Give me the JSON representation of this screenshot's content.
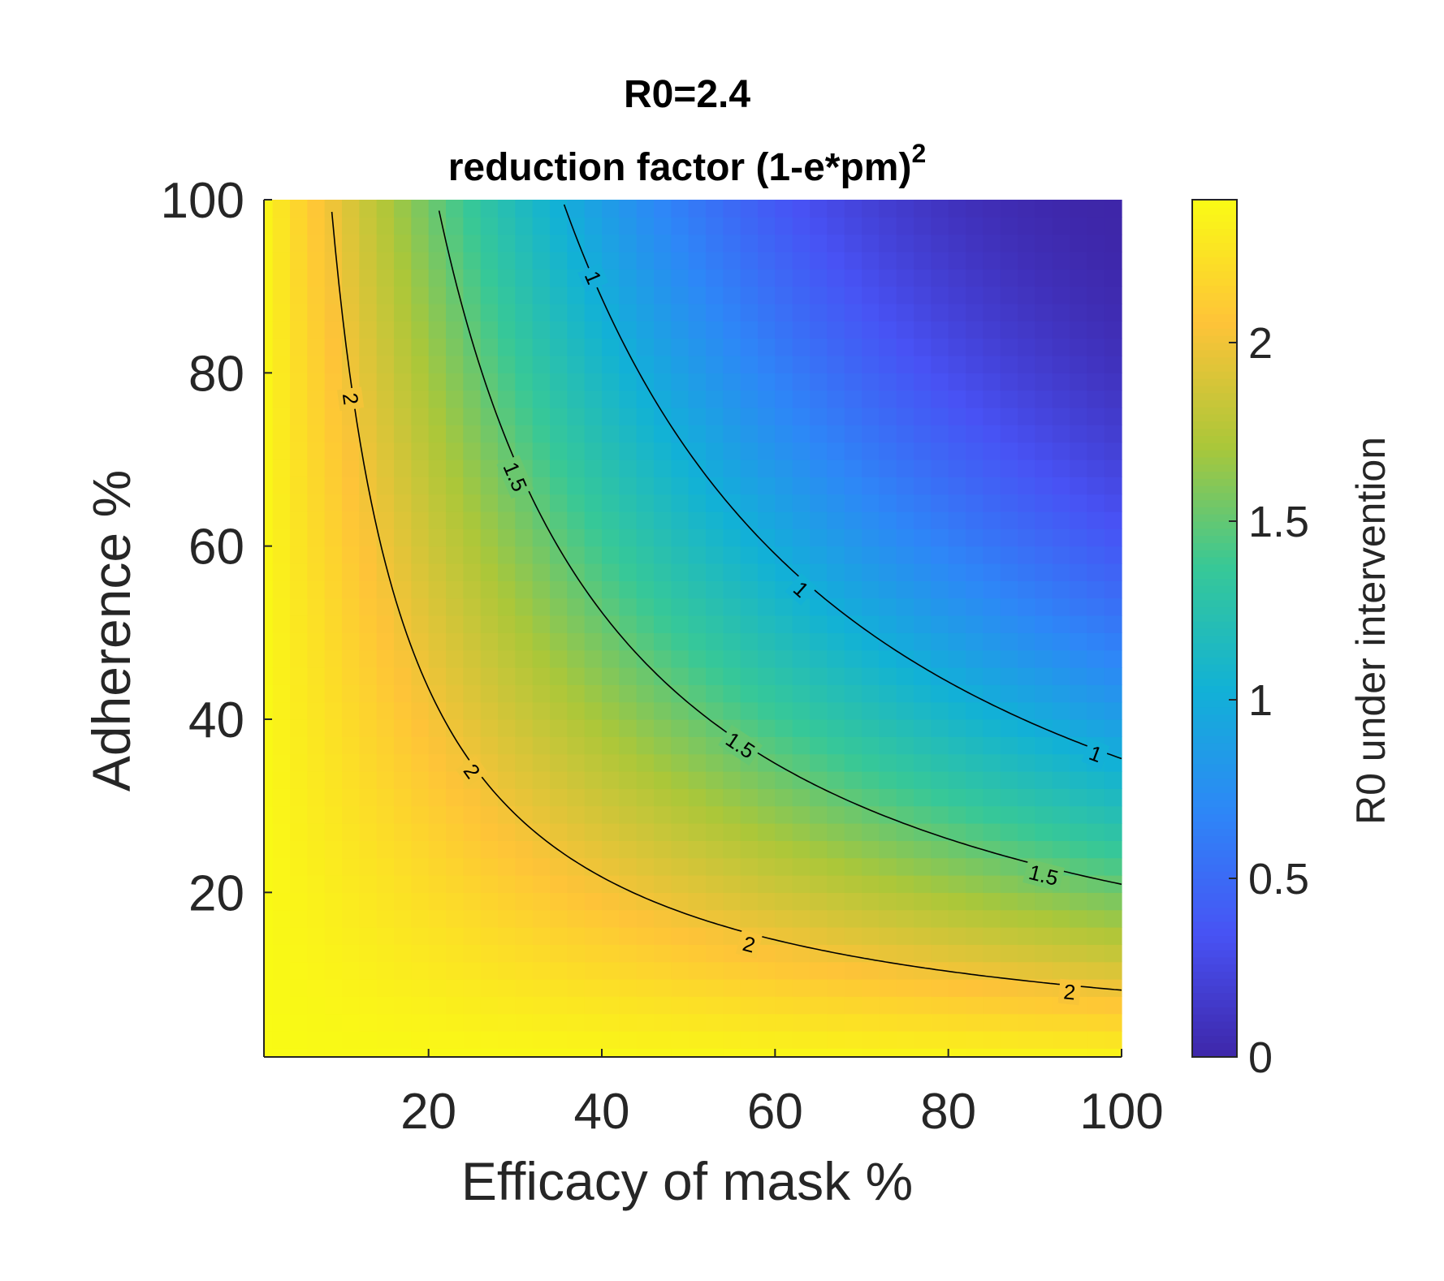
{
  "chart_data": {
    "type": "heatmap",
    "title": "R0=2.4",
    "subtitle_main": "reduction factor (1-e*pm)",
    "subtitle_exponent": "2",
    "xlabel": "Efficacy of mask %",
    "ylabel": "Adherence %",
    "colorbar_label": "R0 under intervention",
    "xlim": [
      1,
      100
    ],
    "ylim": [
      1,
      100
    ],
    "x_ticks": [
      20,
      40,
      60,
      80,
      100
    ],
    "y_ticks": [
      20,
      40,
      60,
      80,
      100
    ],
    "colorbar_range": [
      0,
      2.4
    ],
    "colorbar_ticks": [
      0,
      0.5,
      1,
      1.5,
      2
    ],
    "colormap": "parula",
    "grid_step": 2,
    "R0": 2.4,
    "formula": "R0 * (1 - x/100 * y/100)^2",
    "contour_levels": [
      1,
      1.5,
      2
    ],
    "contour_labels": [
      {
        "level": "2",
        "x": 11,
        "y": 77
      },
      {
        "level": "2",
        "x": 25,
        "y": 34
      },
      {
        "level": "2",
        "x": 57,
        "y": 14
      },
      {
        "level": "2",
        "x": 94,
        "y": 8.5
      },
      {
        "level": "1.5",
        "x": 30,
        "y": 68
      },
      {
        "level": "1.5",
        "x": 56,
        "y": 37
      },
      {
        "level": "1.5",
        "x": 91,
        "y": 22
      },
      {
        "level": "1",
        "x": 39,
        "y": 91
      },
      {
        "level": "1",
        "x": 63,
        "y": 55
      },
      {
        "level": "1",
        "x": 97,
        "y": 36
      }
    ]
  }
}
